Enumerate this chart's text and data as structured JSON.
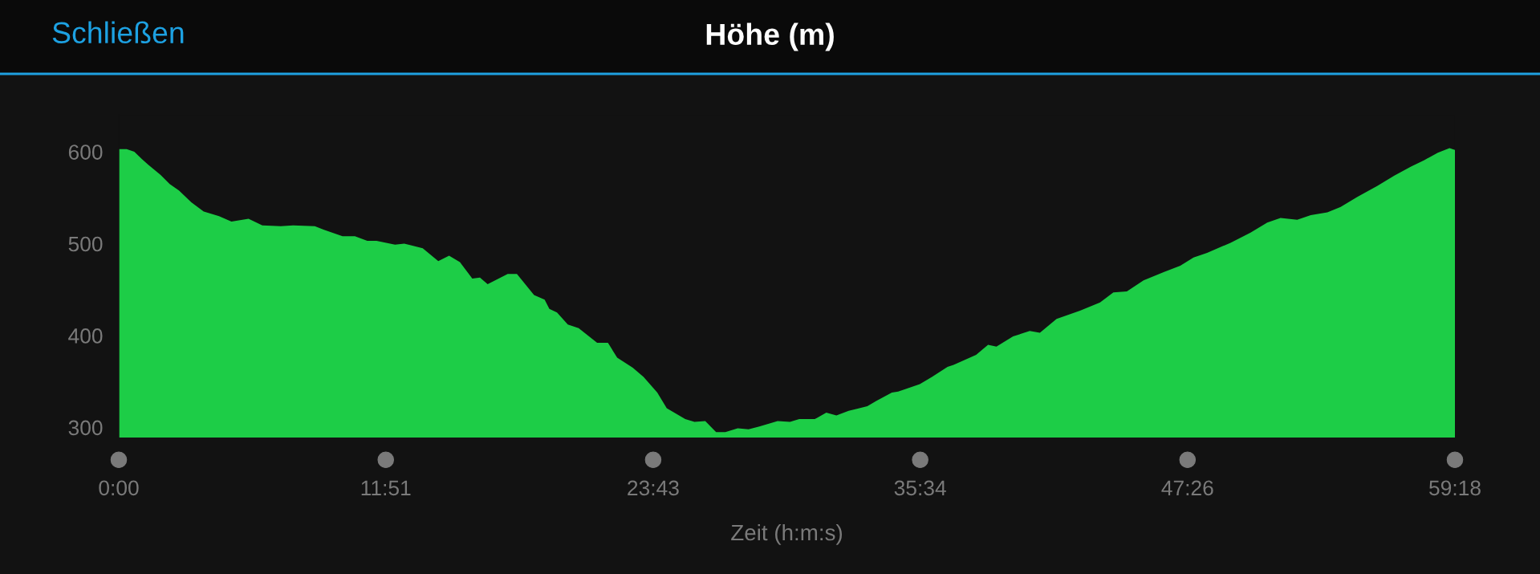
{
  "chart_data": {
    "type": "area",
    "title": "Höhe (m)",
    "xlabel": "Zeit (h:m:s)",
    "annotations": [
      "Schließen"
    ],
    "x": [
      0,
      0.35,
      0.69,
      1.03,
      1.3,
      1.85,
      2.26,
      2.67,
      3.22,
      3.77,
      4.45,
      5.0,
      5.76,
      6.37,
      7.19,
      7.74,
      8.7,
      9.11,
      9.93,
      10.48,
      11.03,
      11.44,
      12.26,
      12.67,
      13.49,
      14.18,
      14.66,
      15.14,
      15.69,
      16.03,
      16.37,
      17.26,
      17.67,
      18.43,
      18.9,
      19.11,
      19.45,
      19.93,
      20.41,
      21.23,
      21.71,
      22.12,
      22.81,
      23.29,
      23.9,
      24.32,
      25.14,
      25.55,
      26.03,
      26.51,
      26.92,
      27.47,
      27.95,
      28.43,
      29.24,
      29.79,
      30.2,
      30.89,
      31.4,
      31.85,
      32.39,
      33.22,
      33.63,
      34.31,
      34.59,
      35.55,
      36.09,
      36.78,
      37.05,
      38.05,
      38.58,
      38.95,
      39.69,
      40.43,
      40.88,
      41.62,
      42.66,
      43.55,
      44.14,
      44.74,
      45.48,
      46.37,
      47.11,
      47.7,
      48.3,
      49.34,
      50.23,
      50.97,
      51.56,
      52.3,
      52.9,
      53.64,
      54.23,
      54.97,
      55.86,
      56.61,
      57.35,
      57.94,
      58.54,
      59.06,
      59.3
    ],
    "series": [
      {
        "color": "#1dcd47",
        "values": [
          603,
          603,
          600,
          592,
          586,
          575,
          565,
          558,
          545,
          535,
          530,
          524,
          527,
          520,
          519,
          520,
          519,
          515,
          508,
          508,
          503,
          503,
          499,
          500,
          495,
          481,
          487,
          480,
          462,
          463,
          456,
          467,
          467,
          444,
          439,
          429,
          425,
          412,
          408,
          392,
          392,
          376,
          365,
          355,
          338,
          321,
          309,
          306,
          307,
          295,
          295,
          299,
          298,
          301,
          307,
          306,
          309,
          309,
          316,
          313,
          318,
          323,
          329,
          338,
          339,
          347,
          355,
          366,
          368,
          379,
          390,
          388,
          399,
          405,
          403,
          418,
          427,
          436,
          447,
          448,
          460,
          469,
          476,
          485,
          490,
          501,
          512,
          523,
          528,
          526,
          531,
          534,
          540,
          551,
          563,
          574,
          584,
          591,
          599,
          604,
          602
        ]
      }
    ],
    "xlim": [
      0,
      59.3
    ],
    "ylim": [
      289,
      640
    ],
    "xticks": [
      {
        "value": 0,
        "label": "0:00"
      },
      {
        "value": 11.85,
        "label": "11:51"
      },
      {
        "value": 23.717,
        "label": "23:43"
      },
      {
        "value": 35.567,
        "label": "35:34"
      },
      {
        "value": 47.433,
        "label": "47:26"
      },
      {
        "value": 59.3,
        "label": "59:18"
      }
    ],
    "yticks": [
      300,
      400,
      500,
      600
    ]
  }
}
